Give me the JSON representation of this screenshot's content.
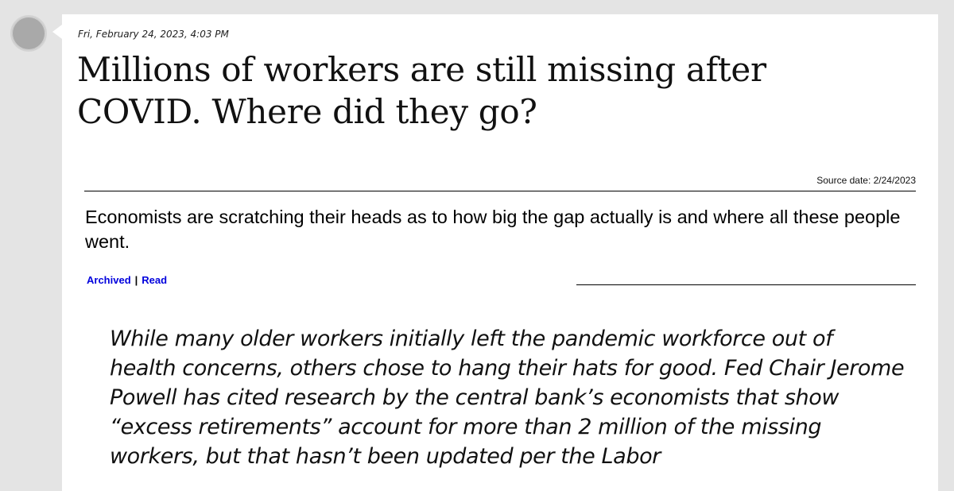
{
  "post": {
    "timestamp": "Fri, February 24, 2023, 4:03 PM",
    "headline": "Millions of workers are still missing after COVID. Where did they go?",
    "source_date": "Source date: 2/24/2023",
    "summary": "Economists are scratching their heads as to how big the gap actually is and where all these people went.",
    "links": {
      "archived": "Archived",
      "separator": "|",
      "read": "Read"
    },
    "quote": "While many older workers initially left the pandemic workforce out of health concerns, others chose to hang their hats for good. Fed Chair Jerome Powell has cited research by the central bank’s economists that show “excess retirements” account for more than 2 million of the missing workers, but that hasn’t been updated per the Labor"
  },
  "colors": {
    "background": "#e4e4e4",
    "card": "#ffffff",
    "link": "#0000dd",
    "avatar": "#a9a9a9"
  }
}
